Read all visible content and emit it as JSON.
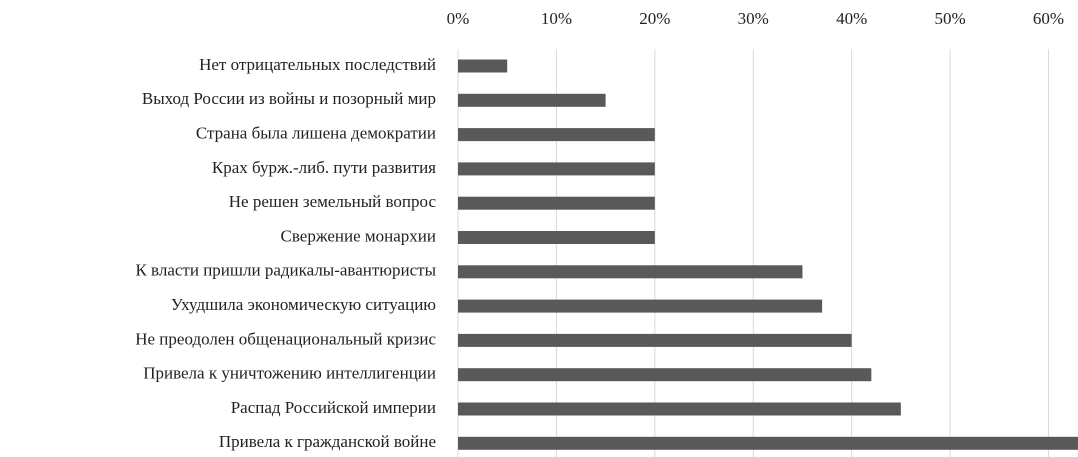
{
  "chart_data": {
    "type": "bar",
    "orientation": "horizontal",
    "categories": [
      "Нет отрицательных последствий",
      "Выход России из войны и позорный мир",
      "Страна была лишена демократии",
      "Крах бурж.-либ. пути развития",
      "Не решен земельный вопрос",
      "Свержение монархии",
      "К власти пришли радикалы-авантюристы",
      "Ухудшила экономическую ситуацию",
      "Не преодолен общенациональный кризис",
      "Привела к уничтожению интеллигенции",
      "Распад Российской империи",
      "Привела к гражданской войне"
    ],
    "values": [
      5,
      15,
      20,
      20,
      20,
      20,
      35,
      37,
      40,
      42,
      45,
      63
    ],
    "color": "#595959",
    "xlim": [
      0,
      63
    ],
    "xticks": [
      {
        "value": 0,
        "label": "0%"
      },
      {
        "value": 10,
        "label": "10%"
      },
      {
        "value": 20,
        "label": "20%"
      },
      {
        "value": 30,
        "label": "30%"
      },
      {
        "value": 40,
        "label": "40%"
      },
      {
        "value": 50,
        "label": "50%"
      },
      {
        "value": 60,
        "label": "60%"
      }
    ],
    "grid": true
  }
}
